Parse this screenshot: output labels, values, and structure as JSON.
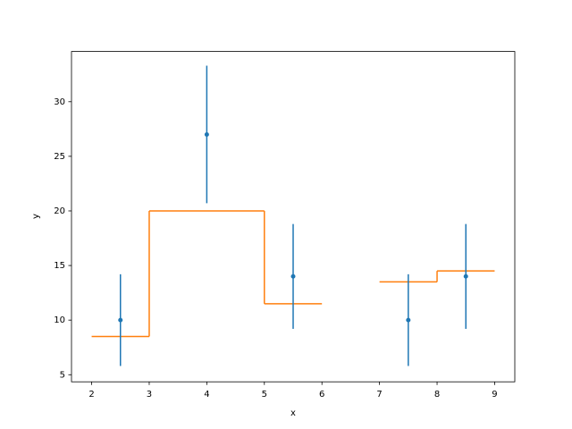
{
  "chart_data": {
    "type": "errorbar-stairs",
    "xlabel": "x",
    "ylabel": "y",
    "xlim": [
      1.65,
      9.35
    ],
    "ylim": [
      4.35,
      34.6
    ],
    "xticks": [
      2,
      3,
      4,
      5,
      6,
      7,
      8,
      9
    ],
    "yticks": [
      5,
      10,
      15,
      20,
      25,
      30
    ],
    "errorbar": {
      "color": "#1f77b4",
      "x": [
        2.5,
        4,
        5.5,
        7.5,
        8.5
      ],
      "values": [
        10,
        27,
        14,
        10,
        14
      ],
      "errors": [
        4.2,
        6.3,
        4.8,
        4.2,
        4.8
      ]
    },
    "stairs": {
      "color": "#ff7f0e",
      "edges": [
        2,
        3,
        5,
        6,
        7,
        8,
        9
      ],
      "values": [
        8.5,
        20,
        11.5,
        null,
        13.5,
        14.5
      ]
    }
  }
}
